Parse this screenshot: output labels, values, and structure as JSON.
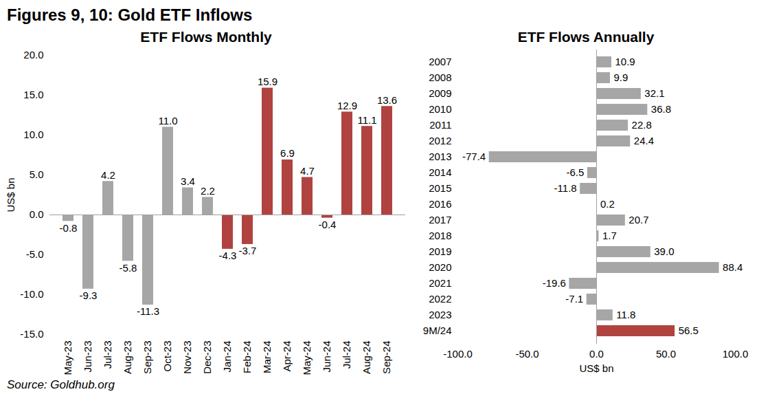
{
  "title": "Figures 9, 10: Gold ETF Inflows",
  "source": "Source: Goldhub.org",
  "chart_data": [
    {
      "type": "bar",
      "title": "ETF Flows Monthly",
      "y_label": "US$ bn",
      "categories": [
        "May-23",
        "Jun-23",
        "Jul-23",
        "Aug-23",
        "Sep-23",
        "Oct-23",
        "Nov-23",
        "Dec-23",
        "Jan-24",
        "Feb-24",
        "Mar-24",
        "Apr-24",
        "May-24",
        "Jun-24",
        "Jul-24",
        "Aug-24",
        "Sep-24"
      ],
      "values": [
        -0.8,
        -9.3,
        4.2,
        -5.8,
        -11.3,
        11.0,
        3.4,
        2.2,
        -4.3,
        -3.7,
        15.9,
        6.9,
        4.7,
        -0.4,
        12.9,
        11.1,
        13.6
      ],
      "value_labels": [
        "-0.8",
        "-9.3",
        "4.2",
        "-5.8",
        "-11.3",
        "11.0",
        "3.4",
        "2.2",
        "-4.3",
        "-3.7",
        "15.9",
        "6.9",
        "4.7",
        "-0.4",
        "12.9",
        "11.1",
        "13.6"
      ],
      "colors": [
        "#a6a6a6",
        "#a6a6a6",
        "#a6a6a6",
        "#a6a6a6",
        "#a6a6a6",
        "#a6a6a6",
        "#a6a6a6",
        "#a6a6a6",
        "#b0433f",
        "#b0433f",
        "#b0433f",
        "#b0433f",
        "#b0433f",
        "#b0433f",
        "#b0433f",
        "#b0433f",
        "#b0433f"
      ],
      "ylim": [
        -15,
        20
      ],
      "yticks": [
        {
          "value": -15,
          "label": "-15.0"
        },
        {
          "value": -10,
          "label": "-10.0"
        },
        {
          "value": -5,
          "label": "-5.0"
        },
        {
          "value": 0,
          "label": "0.0"
        },
        {
          "value": 5,
          "label": "5.0"
        },
        {
          "value": 10,
          "label": "10.0"
        },
        {
          "value": 15,
          "label": "15.0"
        },
        {
          "value": 20,
          "label": "20.0"
        }
      ],
      "grid": false,
      "data_labels": true
    },
    {
      "type": "bar",
      "orientation": "horizontal",
      "title": "ETF Flows Annually",
      "x_label": "US$ bn",
      "categories": [
        "2007",
        "2008",
        "2009",
        "2010",
        "2011",
        "2012",
        "2013",
        "2014",
        "2015",
        "2016",
        "2017",
        "2018",
        "2019",
        "2020",
        "2021",
        "2022",
        "2023",
        "9M/24"
      ],
      "values": [
        10.9,
        9.9,
        32.1,
        36.8,
        22.8,
        24.4,
        -77.4,
        -6.5,
        -11.8,
        0.2,
        20.7,
        1.7,
        39.0,
        88.4,
        -19.6,
        -7.1,
        11.8,
        56.5
      ],
      "value_labels": [
        "10.9",
        "9.9",
        "32.1",
        "36.8",
        "22.8",
        "24.4",
        "-77.4",
        "-6.5",
        "-11.8",
        "0.2",
        "20.7",
        "1.7",
        "39.0",
        "88.4",
        "-19.6",
        "-7.1",
        "11.8",
        "56.5"
      ],
      "colors": [
        "#a6a6a6",
        "#a6a6a6",
        "#a6a6a6",
        "#a6a6a6",
        "#a6a6a6",
        "#a6a6a6",
        "#a6a6a6",
        "#a6a6a6",
        "#a6a6a6",
        "#a6a6a6",
        "#a6a6a6",
        "#a6a6a6",
        "#a6a6a6",
        "#a6a6a6",
        "#a6a6a6",
        "#a6a6a6",
        "#a6a6a6",
        "#b0433f"
      ],
      "xlim": [
        -100,
        100
      ],
      "xticks": [
        {
          "value": -100,
          "label": "-100.0"
        },
        {
          "value": -50,
          "label": "-50.0"
        },
        {
          "value": 0,
          "label": "0.0"
        },
        {
          "value": 50,
          "label": "50.0"
        },
        {
          "value": 100,
          "label": "100.0"
        }
      ],
      "grid": false,
      "data_labels": true
    }
  ]
}
